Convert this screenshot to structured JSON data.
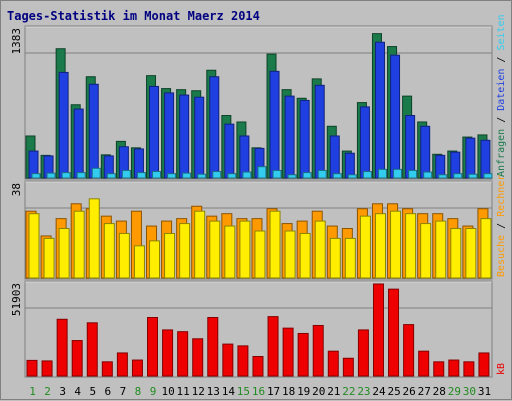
{
  "title": "Tages-Statistik im Monat Maerz 2014",
  "chart_data": [
    {
      "type": "bar",
      "name": "top",
      "max_label": "1383",
      "ylim": [
        0,
        1383
      ],
      "categories": [
        "1",
        "2",
        "3",
        "4",
        "5",
        "6",
        "7",
        "8",
        "9",
        "10",
        "11",
        "12",
        "13",
        "14",
        "15",
        "16",
        "17",
        "18",
        "19",
        "20",
        "21",
        "22",
        "23",
        "24",
        "25",
        "26",
        "27",
        "28",
        "29",
        "30",
        "31"
      ],
      "series": [
        {
          "name": "Anfragen",
          "color": "#1a7a4a",
          "values": [
            390,
            210,
            1200,
            680,
            940,
            215,
            340,
            280,
            950,
            830,
            820,
            810,
            1000,
            580,
            520,
            280,
            1150,
            820,
            740,
            920,
            480,
            250,
            700,
            1340,
            1220,
            760,
            520,
            220,
            250,
            380,
            400
          ]
        },
        {
          "name": "Dateien",
          "color": "#1f3fe0",
          "values": [
            250,
            205,
            980,
            640,
            870,
            205,
            290,
            270,
            850,
            790,
            770,
            750,
            940,
            500,
            390,
            275,
            990,
            760,
            720,
            860,
            390,
            230,
            660,
            1260,
            1140,
            580,
            480,
            210,
            240,
            370,
            350
          ]
        },
        {
          "name": "Seiten",
          "color": "#33ccee",
          "values": [
            40,
            45,
            50,
            50,
            90,
            40,
            70,
            50,
            60,
            40,
            45,
            35,
            60,
            40,
            55,
            105,
            70,
            30,
            50,
            70,
            40,
            30,
            60,
            80,
            80,
            70,
            55,
            30,
            40,
            35,
            40
          ]
        }
      ],
      "legend_color": "#1a7a4a"
    },
    {
      "type": "bar",
      "name": "middle",
      "max_label": "38",
      "ylim": [
        0,
        38
      ],
      "categories": [
        "1",
        "2",
        "3",
        "4",
        "5",
        "6",
        "7",
        "8",
        "9",
        "10",
        "11",
        "12",
        "13",
        "14",
        "15",
        "16",
        "17",
        "18",
        "19",
        "20",
        "21",
        "22",
        "23",
        "24",
        "25",
        "26",
        "27",
        "28",
        "29",
        "30",
        "31"
      ],
      "series": [
        {
          "name": "Besuche",
          "color": "#ff9900",
          "values": [
            27,
            17,
            24,
            30,
            28,
            25,
            23,
            27,
            21,
            23,
            24,
            29,
            25,
            26,
            24,
            24,
            28,
            22,
            23,
            27,
            21,
            20,
            28,
            30,
            30,
            28,
            26,
            26,
            24,
            21,
            28
          ]
        },
        {
          "name": "Rechner",
          "color": "#ffee00",
          "values": [
            26,
            16,
            20,
            27,
            32,
            22,
            18,
            13,
            15,
            18,
            22,
            27,
            23,
            21,
            23,
            19,
            27,
            19,
            18,
            23,
            16,
            16,
            25,
            26,
            27,
            26,
            22,
            23,
            20,
            20,
            24
          ]
        }
      ],
      "legend_color": "#ff9900"
    },
    {
      "type": "bar",
      "name": "bottom",
      "max_label": "51903",
      "ylim": [
        0,
        51903
      ],
      "categories": [
        "1",
        "2",
        "3",
        "4",
        "5",
        "6",
        "7",
        "8",
        "9",
        "10",
        "11",
        "12",
        "13",
        "14",
        "15",
        "16",
        "17",
        "18",
        "19",
        "20",
        "21",
        "22",
        "23",
        "24",
        "25",
        "26",
        "27",
        "28",
        "29",
        "30",
        "31"
      ],
      "series": [
        {
          "name": "kB",
          "color": "#ee0000",
          "values": [
            8800,
            8500,
            32000,
            20000,
            30000,
            8000,
            13000,
            9000,
            33000,
            26000,
            25000,
            21000,
            33000,
            18000,
            17000,
            11000,
            33500,
            27000,
            24000,
            28500,
            14000,
            10000,
            26000,
            51900,
            49000,
            29000,
            14000,
            8000,
            9000,
            8000,
            13000
          ]
        }
      ],
      "legend_color": "#ee0000"
    }
  ],
  "x_labels": [
    {
      "text": "1",
      "weekend": true
    },
    {
      "text": "2",
      "weekend": true
    },
    {
      "text": "3",
      "weekend": false
    },
    {
      "text": "4",
      "weekend": false
    },
    {
      "text": "5",
      "weekend": false
    },
    {
      "text": "6",
      "weekend": false
    },
    {
      "text": "7",
      "weekend": false
    },
    {
      "text": "8",
      "weekend": true
    },
    {
      "text": "9",
      "weekend": true
    },
    {
      "text": "10",
      "weekend": false
    },
    {
      "text": "11",
      "weekend": false
    },
    {
      "text": "12",
      "weekend": false
    },
    {
      "text": "13",
      "weekend": false
    },
    {
      "text": "14",
      "weekend": false
    },
    {
      "text": "15",
      "weekend": true
    },
    {
      "text": "16",
      "weekend": true
    },
    {
      "text": "17",
      "weekend": false
    },
    {
      "text": "18",
      "weekend": false
    },
    {
      "text": "19",
      "weekend": false
    },
    {
      "text": "20",
      "weekend": false
    },
    {
      "text": "21",
      "weekend": false
    },
    {
      "text": "22",
      "weekend": true
    },
    {
      "text": "23",
      "weekend": true
    },
    {
      "text": "24",
      "weekend": false
    },
    {
      "text": "25",
      "weekend": false
    },
    {
      "text": "26",
      "weekend": false
    },
    {
      "text": "27",
      "weekend": false
    },
    {
      "text": "28",
      "weekend": false
    },
    {
      "text": "29",
      "weekend": true
    },
    {
      "text": "30",
      "weekend": true
    },
    {
      "text": "31",
      "weekend": false
    }
  ],
  "colors": {
    "weekday": "#000000",
    "weekend": "#228b22",
    "title": "#000080",
    "panel": "#c0c0c0",
    "grid": "#808080"
  },
  "legend_right": [
    {
      "parts": [
        {
          "text": "Anfragen",
          "color": "#1a7a4a"
        },
        {
          "text": " / ",
          "color": "#000000"
        },
        {
          "text": "Dateien",
          "color": "#1f3fe0"
        },
        {
          "text": " / ",
          "color": "#000000"
        },
        {
          "text": "Seiten",
          "color": "#33ccee"
        }
      ]
    },
    {
      "parts": [
        {
          "text": "Besuche",
          "color": "#ff9900"
        },
        {
          "text": " / ",
          "color": "#000000"
        },
        {
          "text": "Rechner",
          "color": "#ff9900"
        }
      ]
    },
    {
      "parts": [
        {
          "text": "kB",
          "color": "#ee0000"
        }
      ]
    }
  ]
}
